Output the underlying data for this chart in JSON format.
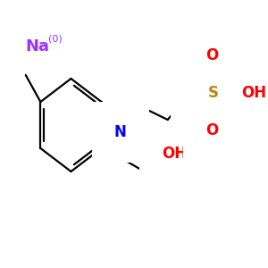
{
  "background_color": "#ffffff",
  "na_label": "Na",
  "na_superscript": "(0)",
  "na_color": "#9933FF",
  "n_label": "N",
  "n_color": "#0000FF",
  "oh_label": "OH",
  "oh_color": "#FF0000",
  "s_label": "S",
  "s_color": "#B8860B",
  "o_label": "O",
  "o_color": "#FF0000",
  "oh2_label": "OH",
  "oh2_color": "#FF0000",
  "bond_color": "#000000",
  "bond_lw": 1.6,
  "figsize": [
    3.0,
    3.0
  ],
  "dpi": 100
}
